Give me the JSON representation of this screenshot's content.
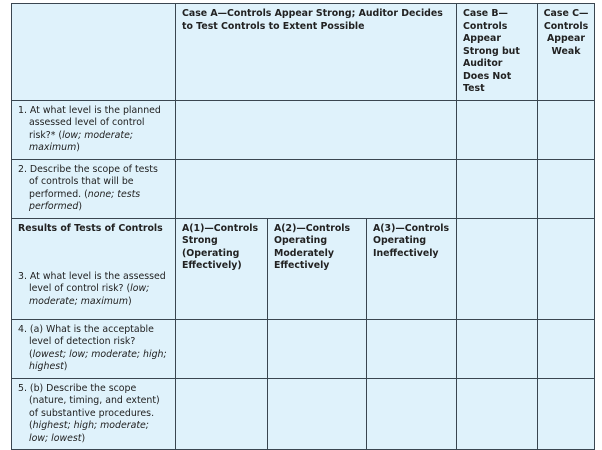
{
  "header": {
    "case_a": "Case A—Controls Appear Strong; Auditor Decides to Test Controls to Extent Possible",
    "case_b": "Case B—Controls Appear Strong but Auditor Does Not Test",
    "case_c": "Case C—Controls Appear Weak"
  },
  "rows": [
    {
      "text": "1. At what level is the planned assessed level of control risk?* (",
      "italic": "low; moderate; maximum",
      "end": ")"
    },
    {
      "text": "2. Describe the scope of tests of controls that will be performed. (",
      "italic": "none; tests performed",
      "end": ")"
    },
    {
      "text": "3. At what level is the assessed level of control risk? (",
      "italic": "low; moderate; maximum",
      "end": ")"
    },
    {
      "text": "4. (a) What is the acceptable level of detection risk? (",
      "italic": "lowest; low; moderate; high; highest",
      "end": ")"
    },
    {
      "text": "5. (b) Describe the scope (nature, timing, and extent) of substantive procedures. (",
      "italic": "highest; high; moderate; low; lowest",
      "end": ")"
    }
  ],
  "results": {
    "label": "Results of Tests of Controls",
    "a1": "A(1)—Controls Strong (Operating Effectively)",
    "a2": "A(2)—Controls Operating Moderately Effectively",
    "a3": "A(3)—Controls Operating Ineffectively"
  }
}
